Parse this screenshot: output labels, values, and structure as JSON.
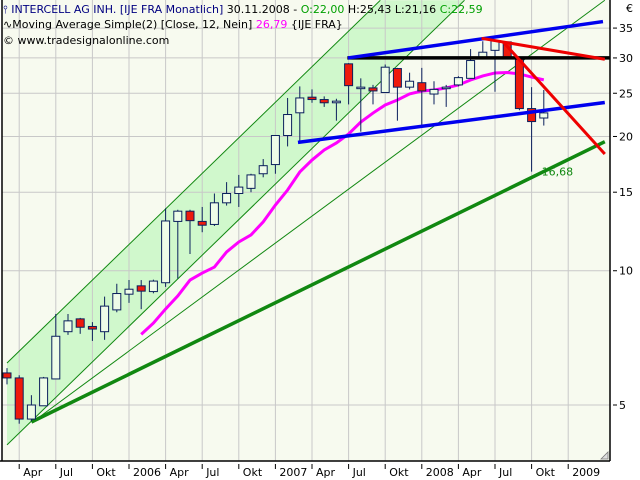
{
  "header": {
    "symbol_icon": "candlestick-icon",
    "title": "INTERCELL AG INH. [IJE FRA  Monatlich]",
    "date": "30.11.2008 -",
    "open": "O:22,00",
    "high": "H:25,43",
    "low": "L:21,16",
    "close": "C:22,59",
    "indicator_icon": "wave-icon",
    "indicator": "Moving Average Simple(2) [Close, 12, Nein]",
    "indicator_value": "26,79",
    "indicator_suffix": "{IJE FRA}",
    "copyright": "© www.tradesignalonline.com"
  },
  "colors": {
    "background": "#f7faef",
    "channel_fill": "#d0f8cc",
    "candle_up": "#eefce8",
    "candle_down": "#ee1a0c",
    "candle_outline": "#0a1f5c",
    "moving_average": "#ff00ff",
    "support_line": "#118811",
    "upper_lines": "#0000ee",
    "resistance": "#000000",
    "downtrend": "#ee0000",
    "grid": "#c8c8c8"
  },
  "chart_data": {
    "type": "candlestick",
    "title": "INTERCELL AG INH. [IJE FRA  Monatlich]",
    "currency": "€",
    "y_scale": "log",
    "ylim": [
      4.2,
      40
    ],
    "y_ticks": [
      "35",
      "30",
      "25",
      "20",
      "15",
      "10",
      "5"
    ],
    "y_tick_values": [
      35,
      30,
      25,
      20,
      15,
      10,
      5
    ],
    "x_ticks": [
      {
        "label": "Apr",
        "month": "2005-04"
      },
      {
        "label": "Jul",
        "month": "2005-07"
      },
      {
        "label": "Okt",
        "month": "2005-10"
      },
      {
        "label": "2006",
        "month": "2006-01"
      },
      {
        "label": "Apr",
        "month": "2006-04"
      },
      {
        "label": "Jul",
        "month": "2006-07"
      },
      {
        "label": "Okt",
        "month": "2006-10"
      },
      {
        "label": "2007",
        "month": "2007-01"
      },
      {
        "label": "Apr",
        "month": "2007-04"
      },
      {
        "label": "Jul",
        "month": "2007-07"
      },
      {
        "label": "Okt",
        "month": "2007-10"
      },
      {
        "label": "2008",
        "month": "2008-01"
      },
      {
        "label": "Apr",
        "month": "2008-04"
      },
      {
        "label": "Jul",
        "month": "2008-07"
      },
      {
        "label": "Okt",
        "month": "2008-10"
      },
      {
        "label": "2009",
        "month": "2009-01"
      }
    ],
    "grid": true,
    "first_month": "2005-03",
    "candles": [
      [
        5.9,
        6.05,
        5.56,
        5.75
      ],
      [
        5.75,
        5.83,
        4.54,
        4.65
      ],
      [
        4.65,
        5.26,
        4.6,
        5.0
      ],
      [
        4.98,
        5.78,
        4.98,
        5.75
      ],
      [
        5.72,
        8.0,
        5.72,
        7.13
      ],
      [
        7.3,
        8.0,
        7.18,
        7.72
      ],
      [
        7.8,
        7.84,
        7.22,
        7.47
      ],
      [
        7.5,
        7.67,
        6.96,
        7.4
      ],
      [
        7.3,
        8.75,
        7.0,
        8.33
      ],
      [
        8.17,
        9.35,
        8.07,
        8.89
      ],
      [
        8.86,
        9.53,
        8.47,
        9.09
      ],
      [
        9.25,
        9.53,
        8.2,
        9.0
      ],
      [
        8.98,
        9.55,
        8.9,
        9.48
      ],
      [
        9.4,
        13.8,
        9.2,
        12.93
      ],
      [
        12.9,
        13.7,
        9.6,
        13.6
      ],
      [
        13.6,
        13.7,
        10.9,
        12.95
      ],
      [
        12.9,
        13.9,
        12.2,
        12.65
      ],
      [
        12.7,
        14.9,
        12.6,
        14.2
      ],
      [
        14.2,
        15.8,
        14.0,
        14.9
      ],
      [
        14.9,
        16.4,
        13.9,
        15.4
      ],
      [
        15.3,
        16.5,
        15.0,
        16.4
      ],
      [
        16.5,
        17.8,
        16.2,
        17.2
      ],
      [
        17.3,
        20.1,
        16.5,
        20.1
      ],
      [
        20.1,
        24.4,
        19.0,
        22.4
      ],
      [
        22.6,
        25.9,
        19.4,
        24.4
      ],
      [
        24.5,
        25.5,
        23.8,
        24.2
      ],
      [
        24.2,
        24.6,
        23.3,
        23.8
      ],
      [
        23.8,
        24.3,
        21.7,
        24.0
      ],
      [
        29.1,
        29.2,
        23.6,
        26.0
      ],
      [
        25.6,
        27.0,
        20.5,
        25.8
      ],
      [
        25.7,
        26.1,
        23.6,
        25.3
      ],
      [
        25.1,
        29.0,
        25.1,
        28.6
      ],
      [
        28.4,
        28.5,
        21.7,
        25.8
      ],
      [
        25.8,
        27.8,
        25.5,
        26.6
      ],
      [
        26.4,
        28.5,
        21.1,
        25.3
      ],
      [
        24.9,
        26.6,
        23.6,
        25.5
      ],
      [
        25.6,
        26.1,
        23.3,
        25.8
      ],
      [
        26.1,
        27.3,
        25.9,
        27.1
      ],
      [
        27.0,
        31.4,
        27.0,
        29.6
      ],
      [
        29.9,
        32.7,
        29.9,
        30.9
      ],
      [
        31.2,
        33.0,
        25.2,
        32.8
      ],
      [
        32.6,
        32.6,
        30.0,
        30.0
      ],
      [
        29.8,
        29.8,
        22.9,
        23.1
      ],
      [
        23.1,
        25.8,
        16.68,
        21.6
      ],
      [
        22.0,
        25.43,
        21.16,
        22.59
      ]
    ],
    "moving_average": {
      "name": "Moving Average Simple(2) [Close, 12, Nein]",
      "start_month": "2006-02",
      "values": [
        7.2,
        7.63,
        8.21,
        8.78,
        9.53,
        9.88,
        10.19,
        11.02,
        11.6,
        12.03,
        12.87,
        14.04,
        15.17,
        16.65,
        17.71,
        18.65,
        19.34,
        20.26,
        21.55,
        22.57,
        23.53,
        24.15,
        24.91,
        25.29,
        25.42,
        25.7,
        26.09,
        26.77,
        27.34,
        27.76,
        27.83,
        27.62,
        27.18,
        26.79
      ]
    },
    "trendlines": [
      {
        "id": "channel-upper",
        "style": "thin-green",
        "from": [
          0,
          6.21
        ],
        "to": [
          30.6,
          40.4
        ]
      },
      {
        "id": "channel-lower",
        "style": "thin-green",
        "from": [
          0,
          4.07
        ],
        "to": [
          37.5,
          40.4
        ]
      },
      {
        "id": "fan-line",
        "style": "thin-green",
        "from": [
          2.1,
          4.58
        ],
        "to": [
          49.0,
          40.4
        ]
      },
      {
        "id": "support-line",
        "style": "thick-green",
        "from": [
          2.0,
          4.58
        ],
        "to": [
          49.0,
          19.47
        ]
      },
      {
        "id": "resistance-30",
        "style": "black",
        "from": [
          27.9,
          30.0
        ],
        "to": [
          49.4,
          30.0
        ]
      },
      {
        "id": "blue-upper",
        "style": "blue",
        "from": [
          27.95,
          30.0
        ],
        "to": [
          48.85,
          36.2
        ]
      },
      {
        "id": "blue-lower",
        "style": "blue",
        "from": [
          23.85,
          19.4
        ],
        "to": [
          49.0,
          23.83
        ]
      },
      {
        "id": "red-upper",
        "style": "red",
        "from": [
          38.9,
          33.2
        ],
        "to": [
          49.0,
          29.8
        ]
      },
      {
        "id": "red-steep",
        "style": "red",
        "from": [
          40.66,
          32.6
        ],
        "to": [
          49.0,
          18.27
        ]
      }
    ],
    "annotations": [
      {
        "text": "16,68",
        "month_index": 43,
        "value": 16.68
      }
    ]
  }
}
